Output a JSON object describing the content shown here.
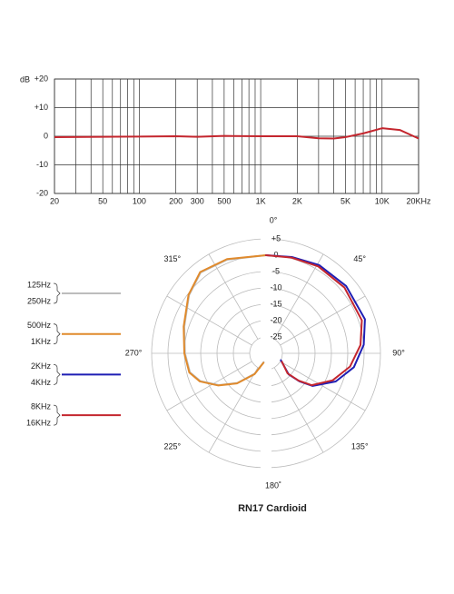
{
  "chart_data": [
    {
      "type": "line",
      "ylabel": "dB",
      "log_x": true,
      "xlim": [
        20,
        20000
      ],
      "ylim": [
        -20,
        20
      ],
      "xticks": [
        20,
        50,
        100,
        200,
        300,
        500,
        {
          "value": 1000,
          "label": "1K"
        },
        {
          "value": 2000,
          "label": "2K"
        },
        {
          "value": 5000,
          "label": "5K"
        },
        {
          "value": 10000,
          "label": "10K"
        },
        {
          "value": 20000,
          "label": "20KHz"
        }
      ],
      "xgrid": [
        20,
        30,
        40,
        50,
        60,
        70,
        80,
        90,
        100,
        200,
        300,
        400,
        500,
        600,
        700,
        800,
        900,
        1000,
        2000,
        3000,
        4000,
        5000,
        6000,
        7000,
        8000,
        9000,
        10000,
        20000
      ],
      "yticks": [
        {
          "value": 20,
          "label": "+20"
        },
        {
          "value": 10,
          "label": "+10"
        },
        0,
        -10,
        -20
      ],
      "grid": true,
      "series": [
        {
          "color": "#c4262e",
          "x": [
            20,
            50,
            100,
            200,
            300,
            500,
            1000,
            2000,
            3000,
            4000,
            5000,
            7000,
            10000,
            14000,
            20000
          ],
          "values": [
            -0.3,
            -0.2,
            -0.1,
            0,
            -0.2,
            0.1,
            0,
            0,
            -0.7,
            -0.8,
            -0.3,
            1,
            2.8,
            2.2,
            -0.8
          ]
        }
      ]
    },
    {
      "type": "polar",
      "title": "RN17 Cardioid",
      "rlim": [
        -30,
        5
      ],
      "rticks": [
        {
          "value": 5,
          "label": "+5"
        },
        0,
        -5,
        -10,
        -15,
        -20,
        -25
      ],
      "angle_ticks": [
        {
          "value": 0,
          "label": "0°"
        },
        {
          "value": 45,
          "label": "45°"
        },
        {
          "value": 90,
          "label": "90°"
        },
        {
          "value": 135,
          "label": "135°"
        },
        {
          "value": 180,
          "label": "180˚"
        },
        {
          "value": 225,
          "label": "225°"
        },
        {
          "value": 270,
          "label": "270°"
        },
        {
          "value": 315,
          "label": "315°"
        }
      ],
      "angle_grid": [
        0,
        30,
        60,
        90,
        120,
        150,
        180,
        210,
        240,
        270,
        300,
        330
      ],
      "series": [
        {
          "names": [
            "125Hz",
            "250Hz"
          ],
          "color": "#bdbdbd",
          "angles": [
            0,
            337.5,
            321,
            307,
            288,
            270,
            256,
            247,
            236,
            224,
            209,
            195
          ],
          "values": [
            0,
            1,
            1.8,
            -0.5,
            -3.7,
            -5.2,
            -6,
            -8.2,
            -12.6,
            -17.4,
            -22.9,
            -27.2
          ]
        },
        {
          "names": [
            "500Hz",
            "1KHz"
          ],
          "color": "#e08a2c",
          "angles": [
            0,
            337.5,
            321,
            307,
            288,
            270,
            256,
            247,
            236,
            224,
            209,
            195
          ],
          "values": [
            0,
            1.2,
            2,
            -0.3,
            -3.5,
            -5,
            -5.8,
            -8,
            -12.4,
            -17.2,
            -22.7,
            -27
          ]
        },
        {
          "names": [
            "2KHz",
            "4KHz"
          ],
          "color": "#1f1fb4",
          "angles": [
            0,
            15,
            31,
            50,
            71,
            85,
            99,
            112,
            125,
            130,
            133,
            115
          ],
          "values": [
            0,
            0.5,
            1.5,
            2,
            2,
            0,
            -2.8,
            -7,
            -12.6,
            -16.7,
            -20.5,
            -25
          ]
        },
        {
          "names": [
            "8KHz",
            "16KHz"
          ],
          "color": "#c4262e",
          "angles": [
            0,
            15,
            31,
            50,
            71,
            85,
            99,
            112,
            125,
            130,
            133,
            118
          ],
          "values": [
            0,
            0.3,
            1,
            1.3,
            1,
            -1,
            -4,
            -8,
            -13,
            -17,
            -21,
            -24.5
          ]
        }
      ]
    }
  ]
}
